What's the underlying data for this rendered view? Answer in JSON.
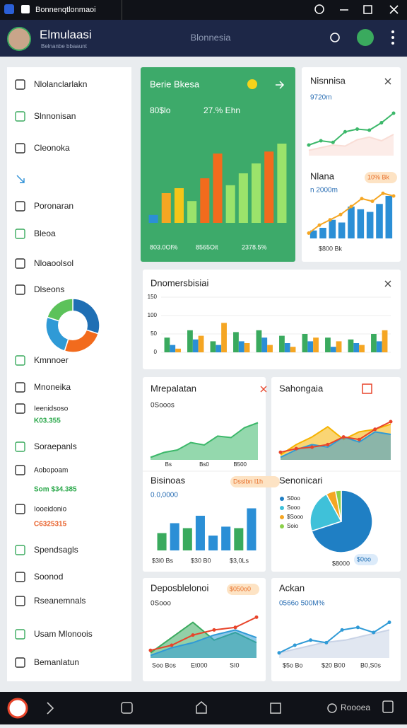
{
  "titlebar": {
    "title": "Bonnenqtlonmaoi"
  },
  "header": {
    "title": "Elmulaasi",
    "subtitle": "Belnanbe bbaaunt",
    "center": "Blonnesia"
  },
  "sidebar": {
    "items": [
      {
        "label": "Nlolanclarlakn"
      },
      {
        "label": "Slnnonisan"
      },
      {
        "label": "Cleonoka"
      },
      {
        "label": "Poronaran"
      },
      {
        "label": "Bleoa"
      },
      {
        "label": "Nloaoolsol"
      },
      {
        "label": "Dlseons"
      },
      {
        "label": "Kmnnoer"
      },
      {
        "label": "Mnoneika"
      },
      {
        "label": "Ieenidsoso",
        "note": "K03.355",
        "note_color": "#2aa84a"
      },
      {
        "label": "Soraepanls"
      },
      {
        "label": "Aobopoam",
        "note": "Som $34.385",
        "note_color": "#2aa84a"
      },
      {
        "label": "Iooeidonio",
        "note": "C6325315",
        "note_color": "#e8602a"
      },
      {
        "label": "Spendsagls"
      },
      {
        "label": "Soonod"
      },
      {
        "label": "Rseanemnals"
      },
      {
        "label": "Usam Mlonoois"
      },
      {
        "label": "Bemanlatun"
      }
    ],
    "donut": {
      "type": "donut",
      "values": [
        30,
        25,
        25,
        20
      ],
      "colors": [
        "#1f6fb4",
        "#f26b1d",
        "#2f9ad6",
        "#5cc25a"
      ]
    }
  },
  "cards": [
    {
      "title": "Berie Bkesa",
      "stats": [
        "80$lo",
        "27.% Ehn"
      ],
      "footer": [
        "803.0Ol%",
        "8565Oit",
        "2378.5%"
      ],
      "chart": {
        "ylim": [
          0,
          100
        ],
        "series": [
          {
            "type": "bar",
            "colors": [
              "#2b8fd6",
              "#f5a623",
              "#f5c518",
              "#9be36b",
              "#f26b1d",
              "#f26b1d",
              "#9be36b",
              "#9be36b",
              "#9be36b",
              "#f26b1d",
              "#9be36b"
            ],
            "values": [
              8,
              30,
              35,
              22,
              45,
              70,
              38,
              50,
              60,
              72,
              80
            ]
          }
        ]
      }
    },
    {
      "title": "Nisnnisa",
      "subtitle": "9720m",
      "chart": {
        "ylim": [
          0,
          100
        ],
        "series": [
          {
            "type": "area",
            "color": "#f9ddd6",
            "values": [
              10,
              15,
              20,
              18,
              30,
              35,
              28,
              40
            ]
          },
          {
            "type": "line",
            "color": "#3cb86a",
            "values": [
              20,
              28,
              25,
              45,
              50,
              48,
              62,
              80
            ]
          }
        ]
      }
    },
    {
      "title": "Nlana",
      "subtitle": "n 2000m",
      "badge": "10% Bk",
      "footer": [
        "$800 Bk"
      ],
      "chart": {
        "ylim": [
          0,
          100
        ],
        "series": [
          {
            "type": "bar",
            "color": "#2b8fd6",
            "values": [
              15,
              20,
              35,
              30,
              60,
              55,
              50,
              65,
              80
            ]
          },
          {
            "type": "line",
            "color": "#f5a623",
            "values": [
              10,
              25,
              35,
              45,
              60,
              75,
              70,
              85,
              80
            ]
          }
        ]
      }
    },
    {
      "title": "Dnomersbisiai",
      "chart": {
        "ylim": [
          0,
          150
        ],
        "yticks": [
          0,
          50,
          100,
          150
        ],
        "series": [
          {
            "type": "bar",
            "color": "#3aaa5e",
            "values": [
              40,
              60,
              30,
              55,
              60,
              45,
              50,
              40,
              35,
              50
            ]
          },
          {
            "type": "bar",
            "color": "#2b8fd6",
            "values": [
              20,
              35,
              20,
              30,
              40,
              25,
              30,
              15,
              25,
              30
            ]
          },
          {
            "type": "bar",
            "color": "#f5a623",
            "values": [
              10,
              45,
              80,
              25,
              20,
              15,
              40,
              30,
              20,
              60
            ]
          }
        ]
      }
    },
    {
      "title": "Mrepalatan",
      "subtitle": "0Sooos",
      "chart": {
        "ylim": [
          0,
          100
        ],
        "categories": [
          "Bs",
          "Bs0",
          "B500"
        ],
        "series": [
          {
            "type": "area",
            "color": "#3cb86a",
            "values": [
              5,
              15,
              20,
              35,
              30,
              48,
              45,
              65,
              75
            ]
          }
        ]
      }
    },
    {
      "title": "Sahongaia",
      "chart": {
        "ylim": [
          0,
          100
        ],
        "series": [
          {
            "type": "area",
            "color": "#f5b301",
            "values": [
              10,
              30,
              45,
              65,
              40,
              55,
              60,
              70
            ]
          },
          {
            "type": "area",
            "color": "#2f9ad6",
            "values": [
              5,
              20,
              30,
              25,
              45,
              35,
              55,
              50
            ]
          },
          {
            "type": "line",
            "color": "#e8442a",
            "values": [
              15,
              22,
              25,
              30,
              45,
              40,
              60,
              75
            ]
          }
        ]
      }
    },
    {
      "title": "Bisinoas",
      "subtitle": "0.0,0000",
      "badge": "Dsslbn l1h",
      "footer": [
        "$3l0 Bs",
        "$30 B0",
        "$3,0Ls"
      ],
      "chart": {
        "ylim": [
          0,
          100
        ],
        "series": [
          {
            "type": "bar",
            "colors": [
              "#3aaa5e",
              "#2b8fd6",
              "#3aaa5e",
              "#2b8fd6",
              "#2b8fd6",
              "#2b8fd6",
              "#3aaa5e",
              "#2b8fd6"
            ],
            "values": [
              35,
              55,
              45,
              70,
              30,
              48,
              45,
              85
            ]
          }
        ]
      }
    },
    {
      "title": "Senonicari",
      "badge": "$0oo",
      "footer": [
        "$8000"
      ],
      "legend": [
        "S0oo",
        "Sooo",
        "$Sooo",
        "Soio"
      ],
      "chart": {
        "type": "pie",
        "values": [
          70,
          22,
          5,
          3
        ],
        "colors": [
          "#1f7fc4",
          "#3fc1d9",
          "#f5a623",
          "#8bd04a"
        ]
      }
    },
    {
      "title": "Deposblelonoi",
      "subtitle": "0Sooo",
      "badge": "$050o0",
      "footer": [
        "Soo Bos",
        "Et000",
        "SI0"
      ],
      "chart": {
        "ylim": [
          0,
          100
        ],
        "series": [
          {
            "type": "area",
            "color": "#3aaa5e",
            "values": [
              10,
              40,
              70,
              35,
              50,
              30
            ]
          },
          {
            "type": "area",
            "color": "#2f9ad6",
            "values": [
              5,
              20,
              30,
              45,
              55,
              40
            ]
          },
          {
            "type": "line",
            "color": "#e8442a",
            "values": [
              15,
              25,
              45,
              55,
              60,
              80
            ]
          }
        ]
      }
    },
    {
      "title": "Ackan",
      "subtitle": "0566o 500M%",
      "footer": [
        "$5o Bo",
        "$20 B00",
        "B0,S0s"
      ],
      "chart": {
        "ylim": [
          0,
          100
        ],
        "series": [
          {
            "type": "area",
            "color": "#c9d3e6",
            "values": [
              10,
              20,
              30,
              35,
              45,
              55
            ]
          },
          {
            "type": "line",
            "color": "#2f9ad6",
            "values": [
              10,
              25,
              35,
              30,
              55,
              60,
              50,
              70
            ]
          }
        ]
      }
    }
  ],
  "taskbar": {
    "label": "Roooea"
  }
}
